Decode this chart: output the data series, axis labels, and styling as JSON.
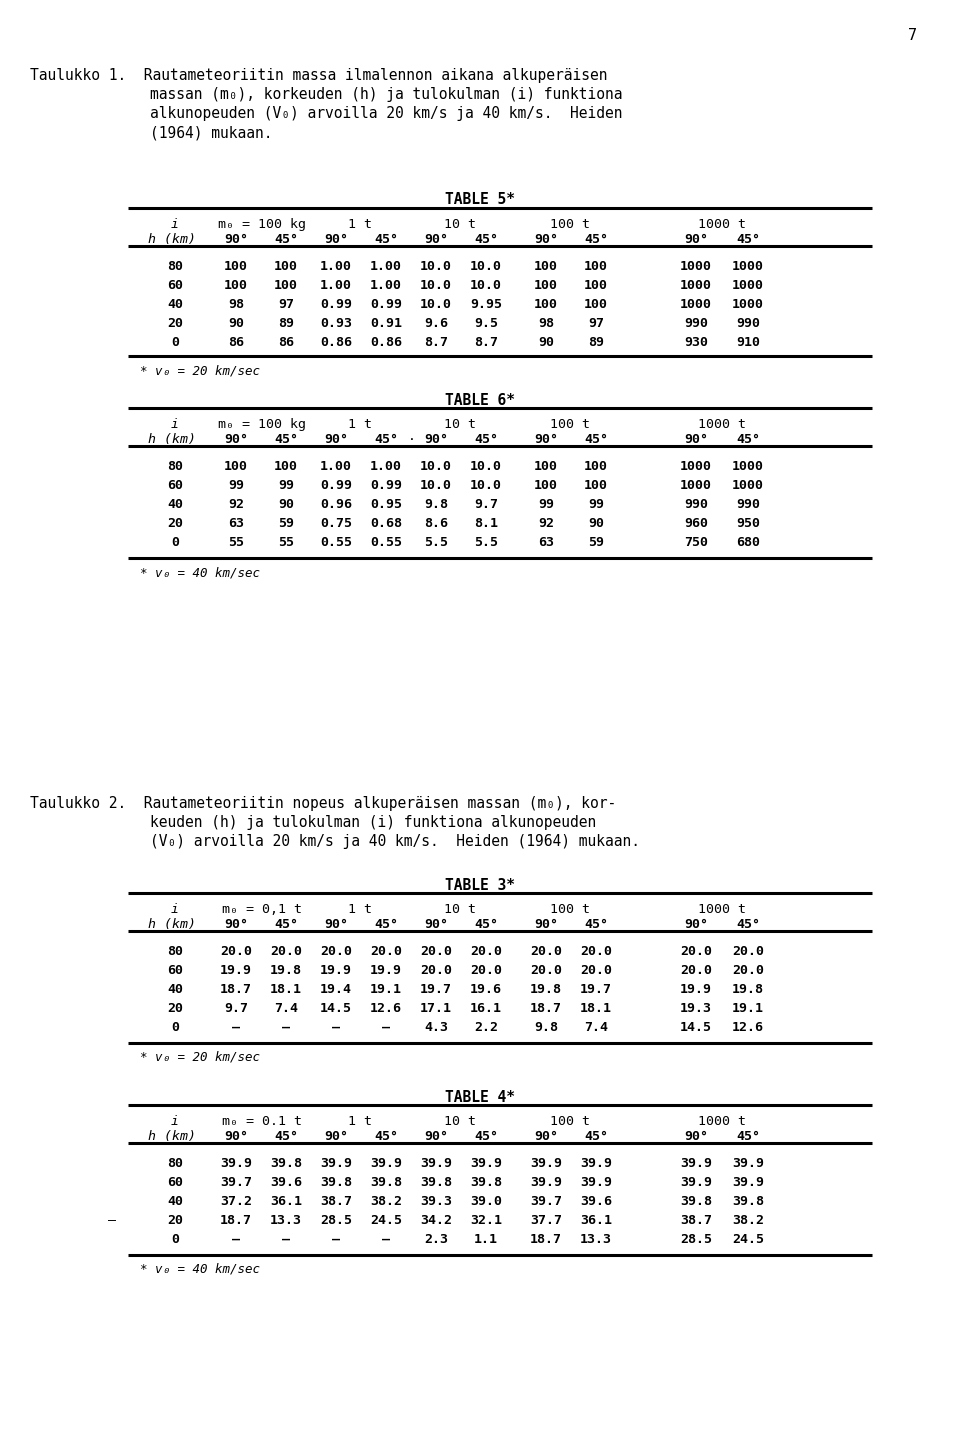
{
  "page_number": "7",
  "background_color": "#ffffff",
  "text_color": "#000000",
  "table5_title": "TABLE 5*",
  "table5_data": [
    [
      "80",
      "100",
      "100",
      "1.00",
      "1.00",
      "10.0",
      "10.0",
      "100",
      "100",
      "1000",
      "1000"
    ],
    [
      "60",
      "100",
      "100",
      "1.00",
      "1.00",
      "10.0",
      "10.0",
      "100",
      "100",
      "1000",
      "1000"
    ],
    [
      "40",
      "98",
      "97",
      "0.99",
      "0.99",
      "10.0",
      "9.95",
      "100",
      "100",
      "1000",
      "1000"
    ],
    [
      "20",
      "90",
      "89",
      "0.93",
      "0.91",
      "9.6",
      "9.5",
      "98",
      "97",
      "990",
      "990"
    ],
    [
      "0",
      "86",
      "86",
      "0.86",
      "0.86",
      "8.7",
      "8.7",
      "90",
      "89",
      "930",
      "910"
    ]
  ],
  "table5_footnote": "* v0 = 20 km/sec",
  "table6_title": "TABLE 6*",
  "table6_data": [
    [
      "80",
      "100",
      "100",
      "1.00",
      "1.00",
      "10.0",
      "10.0",
      "100",
      "100",
      "1000",
      "1000"
    ],
    [
      "60",
      "99",
      "99",
      "0.99",
      "0.99",
      "10.0",
      "10.0",
      "100",
      "100",
      "1000",
      "1000"
    ],
    [
      "40",
      "92",
      "90",
      "0.96",
      "0.95",
      "9.8",
      "9.7",
      "99",
      "99",
      "990",
      "990"
    ],
    [
      "20",
      "63",
      "59",
      "0.75",
      "0.68",
      "8.6",
      "8.1",
      "92",
      "90",
      "960",
      "950"
    ],
    [
      "0",
      "55",
      "55",
      "0.55",
      "0.55",
      "5.5",
      "5.5",
      "63",
      "59",
      "750",
      "680"
    ]
  ],
  "table6_footnote": "* v0 = 40 km/sec",
  "table3_title": "TABLE 3*",
  "table3_data": [
    [
      "80",
      "20.0",
      "20.0",
      "20.0",
      "20.0",
      "20.0",
      "20.0",
      "20.0",
      "20.0",
      "20.0",
      "20.0"
    ],
    [
      "60",
      "19.9",
      "19.8",
      "19.9",
      "19.9",
      "20.0",
      "20.0",
      "20.0",
      "20.0",
      "20.0",
      "20.0"
    ],
    [
      "40",
      "18.7",
      "18.1",
      "19.4",
      "19.1",
      "19.7",
      "19.6",
      "19.8",
      "19.7",
      "19.9",
      "19.8"
    ],
    [
      "20",
      "9.7",
      "7.4",
      "14.5",
      "12.6",
      "17.1",
      "16.1",
      "18.7",
      "18.1",
      "19.3",
      "19.1"
    ],
    [
      "0",
      "–",
      "–",
      "–",
      "–",
      "4.3",
      "2.2",
      "9.8",
      "7.4",
      "14.5",
      "12.6"
    ]
  ],
  "table3_footnote": "* v0 = 20 km/sec",
  "table4_title": "TABLE 4*",
  "table4_data": [
    [
      "80",
      "39.9",
      "39.8",
      "39.9",
      "39.9",
      "39.9",
      "39.9",
      "39.9",
      "39.9",
      "39.9",
      "39.9"
    ],
    [
      "60",
      "39.7",
      "39.6",
      "39.8",
      "39.8",
      "39.8",
      "39.8",
      "39.9",
      "39.9",
      "39.9",
      "39.9"
    ],
    [
      "40",
      "37.2",
      "36.1",
      "38.7",
      "38.2",
      "39.3",
      "39.0",
      "39.7",
      "39.6",
      "39.8",
      "39.8"
    ],
    [
      "20",
      "18.7",
      "13.3",
      "28.5",
      "24.5",
      "34.2",
      "32.1",
      "37.7",
      "36.1",
      "38.7",
      "38.2"
    ],
    [
      "0",
      "–",
      "–",
      "–",
      "–",
      "2.3",
      "1.1",
      "18.7",
      "13.3",
      "28.5",
      "24.5"
    ]
  ],
  "table4_footnote": "* v0 = 40 km/sec"
}
